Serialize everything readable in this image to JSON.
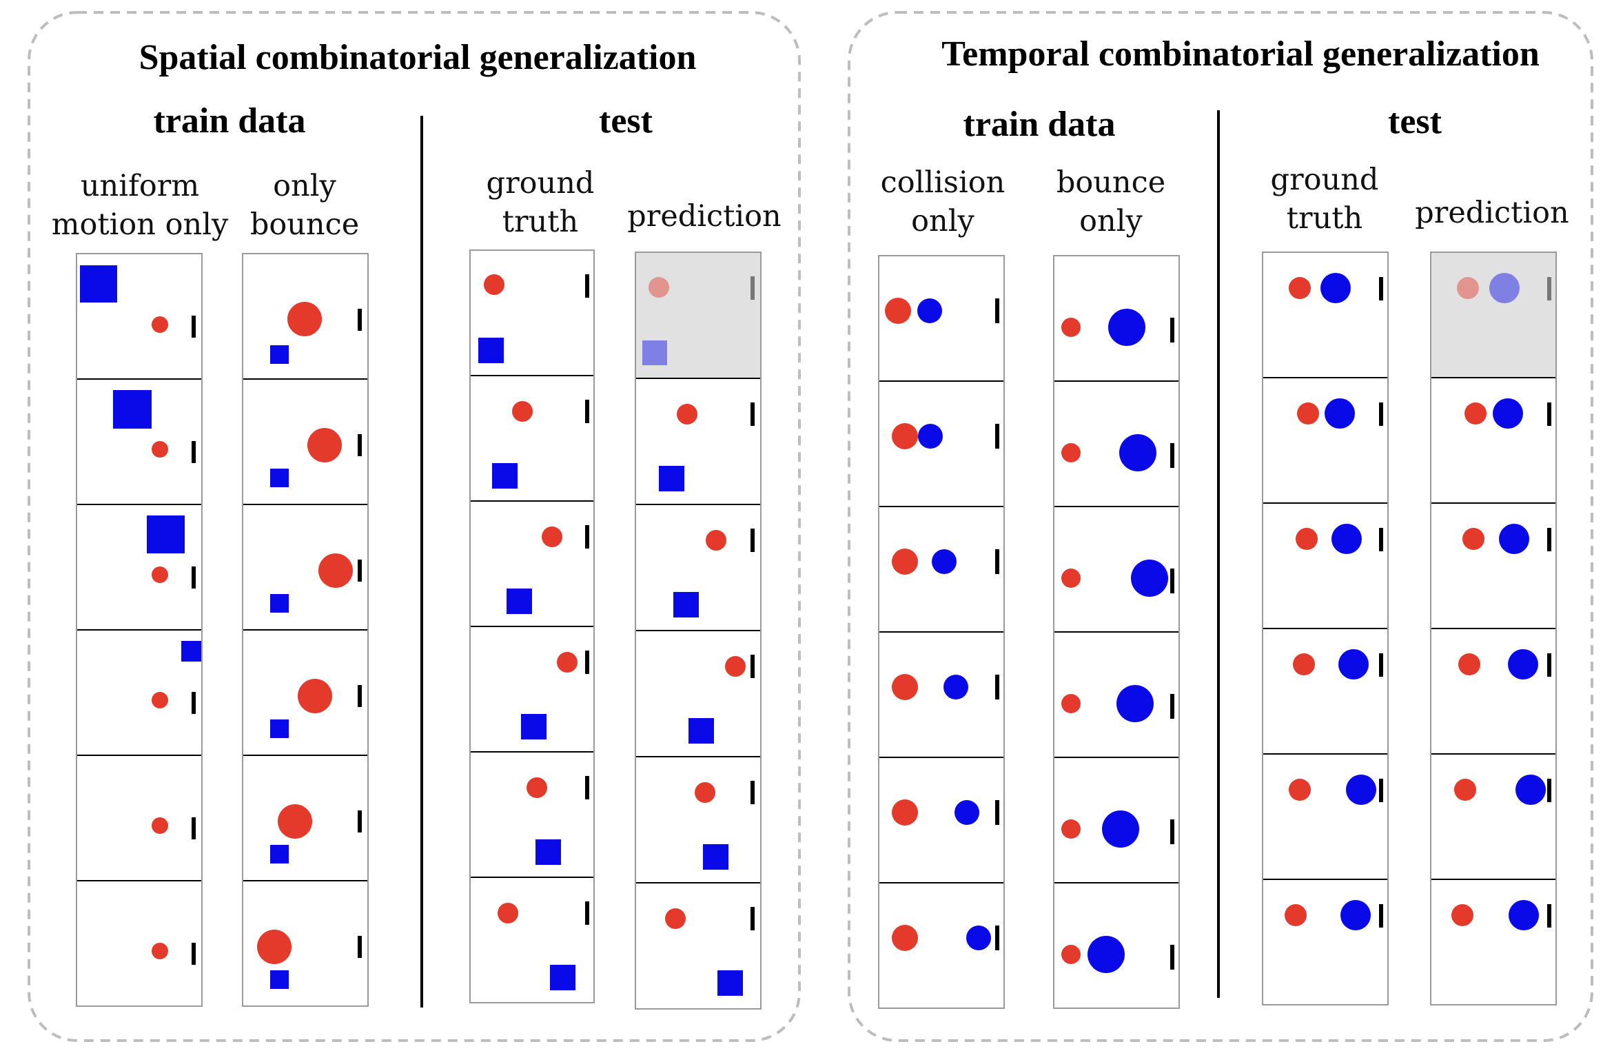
{
  "colors": {
    "red": "#e33a2b",
    "blue": "#0a0ae8",
    "wall": "#000000",
    "frame_border": "#9a9a9a",
    "shaded_bg": "#e1e1e1",
    "panel_border": "#bdbdbd"
  },
  "panels": [
    {
      "title": "Spatial combinatorial generalization",
      "train_heading": "train data",
      "test_heading": "test",
      "columns": [
        {
          "label_line1": "uniform",
          "label_line2": "motion only"
        },
        {
          "label_line1": "only",
          "label_line2": "bounce"
        },
        {
          "label_line1": "ground",
          "label_line2": "truth"
        },
        {
          "label_line1": "prediction",
          "label_line2": ""
        }
      ]
    },
    {
      "title": "Temporal combinatorial generalization",
      "train_heading": "train data",
      "test_heading": "test",
      "columns": [
        {
          "label_line1": "collision",
          "label_line2": "only"
        },
        {
          "label_line1": "bounce",
          "label_line2": "only"
        },
        {
          "label_line1": "ground",
          "label_line2": "truth"
        },
        {
          "label_line1": "prediction",
          "label_line2": ""
        }
      ]
    }
  ]
}
